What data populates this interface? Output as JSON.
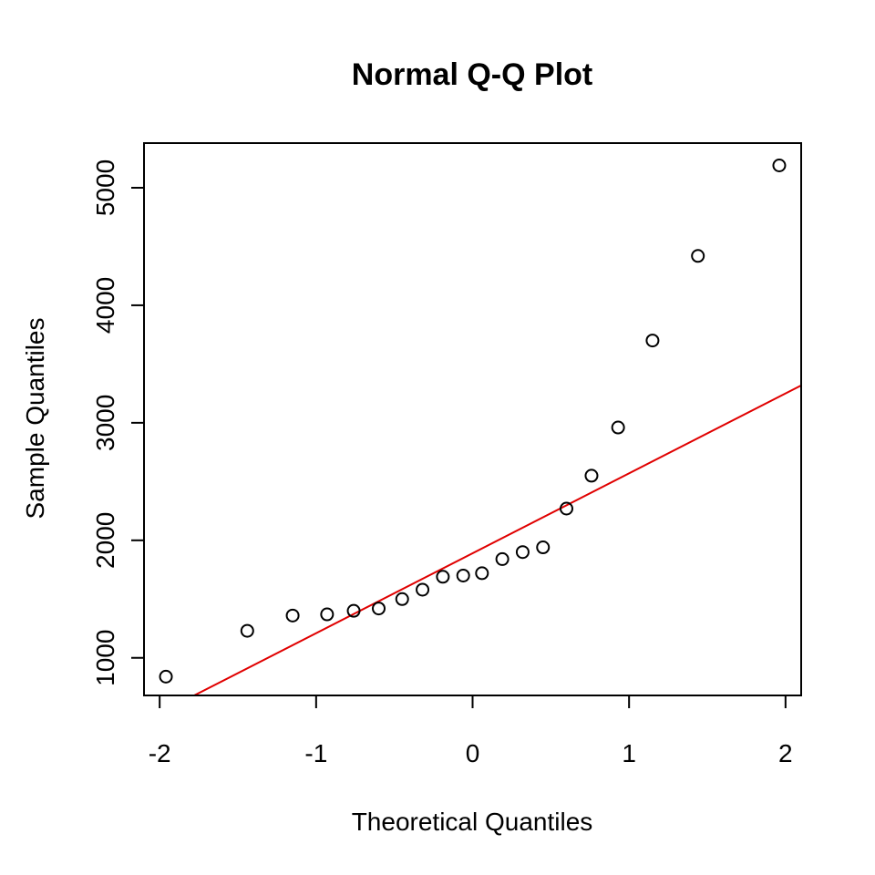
{
  "chart_data": {
    "type": "scatter",
    "title": "Normal Q-Q Plot",
    "xlabel": "Theoretical Quantiles",
    "ylabel": "Sample Quantiles",
    "xlim": [
      -2.1,
      2.1
    ],
    "ylim": [
      680,
      5380
    ],
    "x_ticks": [
      -2,
      -1,
      0,
      1,
      2
    ],
    "x_tick_labels": [
      "-2",
      "-1",
      "0",
      "1",
      "2"
    ],
    "y_ticks": [
      1000,
      2000,
      3000,
      4000,
      5000
    ],
    "y_tick_labels": [
      "1000",
      "2000",
      "3000",
      "4000",
      "5000"
    ],
    "grid": false,
    "points": [
      {
        "x": -1.96,
        "y": 840
      },
      {
        "x": -1.44,
        "y": 1230
      },
      {
        "x": -1.15,
        "y": 1360
      },
      {
        "x": -0.93,
        "y": 1370
      },
      {
        "x": -0.76,
        "y": 1400
      },
      {
        "x": -0.6,
        "y": 1420
      },
      {
        "x": -0.45,
        "y": 1500
      },
      {
        "x": -0.32,
        "y": 1580
      },
      {
        "x": -0.19,
        "y": 1690
      },
      {
        "x": -0.06,
        "y": 1700
      },
      {
        "x": 0.06,
        "y": 1720
      },
      {
        "x": 0.19,
        "y": 1840
      },
      {
        "x": 0.32,
        "y": 1900
      },
      {
        "x": 0.45,
        "y": 1940
      },
      {
        "x": 0.6,
        "y": 2270
      },
      {
        "x": 0.76,
        "y": 2550
      },
      {
        "x": 0.93,
        "y": 2960
      },
      {
        "x": 1.15,
        "y": 3700
      },
      {
        "x": 1.44,
        "y": 4420
      },
      {
        "x": 1.96,
        "y": 5190
      }
    ],
    "reference_line": {
      "intercept": 1890,
      "slope": 680
    },
    "point_color": "#000000",
    "line_color": "#e00000"
  }
}
